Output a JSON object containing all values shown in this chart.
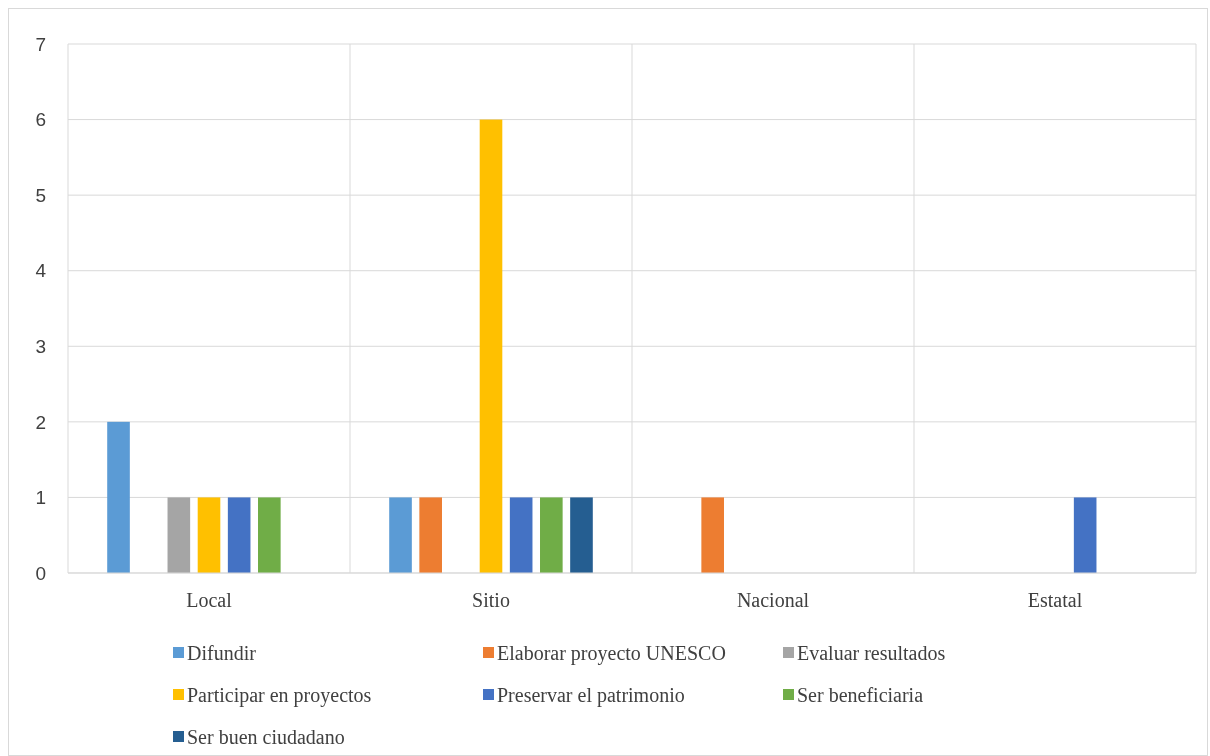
{
  "chart_data": {
    "type": "bar",
    "categories": [
      "Local",
      "Sitio",
      "Nacional",
      "Estatal"
    ],
    "series": [
      {
        "name": "Difundir",
        "color": "#5b9bd5",
        "values": [
          2,
          1,
          0,
          0
        ]
      },
      {
        "name": "Elaborar proyecto UNESCO",
        "color": "#ed7d31",
        "values": [
          0,
          1,
          1,
          0
        ]
      },
      {
        "name": "Evaluar resultados",
        "color": "#a5a5a5",
        "values": [
          1,
          0,
          0,
          0
        ]
      },
      {
        "name": "Participar en proyectos",
        "color": "#ffc000",
        "values": [
          1,
          6,
          0,
          0
        ]
      },
      {
        "name": "Preservar el patrimonio",
        "color": "#4472c4",
        "values": [
          1,
          1,
          0,
          1
        ]
      },
      {
        "name": "Ser beneficiaria",
        "color": "#70ad47",
        "values": [
          1,
          1,
          0,
          0
        ]
      },
      {
        "name": "Ser buen ciudadano",
        "color": "#255e91",
        "values": [
          0,
          1,
          0,
          0
        ]
      }
    ],
    "ylim": [
      0,
      7
    ],
    "yticks": [
      0,
      1,
      2,
      3,
      4,
      5,
      6,
      7
    ],
    "grid": true,
    "legend": "bottom"
  }
}
